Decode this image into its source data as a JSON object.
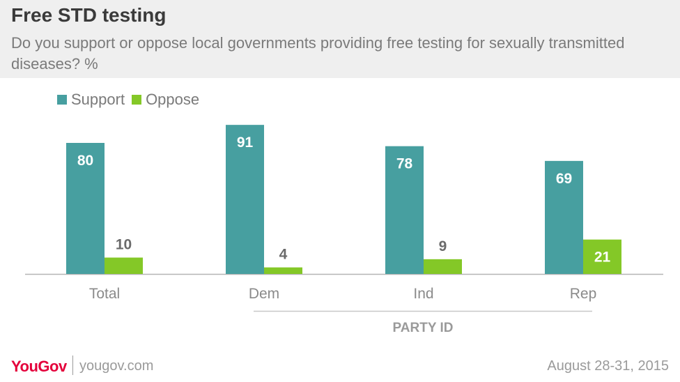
{
  "chart_data": {
    "type": "bar",
    "title": "Free STD testing",
    "subtitle": "Do you support or oppose local governments providing free testing for sexually transmitted diseases? %",
    "categories": [
      "Total",
      "Dem",
      "Ind",
      "Rep"
    ],
    "group_label": "PARTY ID",
    "series": [
      {
        "name": "Support",
        "color": "#479fa0",
        "values": [
          80,
          91,
          78,
          69
        ]
      },
      {
        "name": "Oppose",
        "color": "#84c827",
        "values": [
          10,
          4,
          9,
          21
        ]
      }
    ],
    "ylim": [
      0,
      100
    ],
    "grid": false,
    "legend": "top-left"
  },
  "footer": {
    "brand": "YouGov",
    "url": "yougov.com",
    "date": "August 28-31, 2015"
  }
}
